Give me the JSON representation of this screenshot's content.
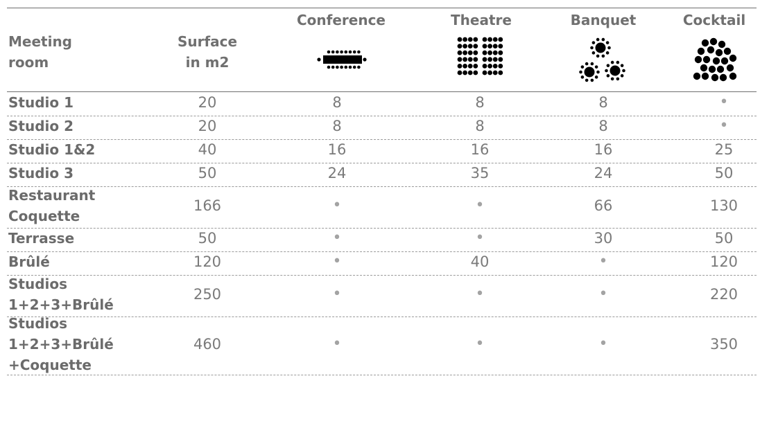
{
  "header": {
    "meeting_room": [
      "Meeting",
      "room"
    ],
    "surface": [
      "Surface",
      "in m2"
    ],
    "conference": "Conference",
    "theatre": "Theatre",
    "banquet": "Banquet",
    "cocktail": "Cocktail"
  },
  "rows": [
    {
      "name": [
        "Studio 1"
      ],
      "surface": "20",
      "conference": "8",
      "theatre": "8",
      "banquet": "8",
      "cocktail": "•"
    },
    {
      "name": [
        "Studio 2"
      ],
      "surface": "20",
      "conference": "8",
      "theatre": "8",
      "banquet": "8",
      "cocktail": "•"
    },
    {
      "name": [
        "Studio 1&2"
      ],
      "surface": "40",
      "conference": "16",
      "theatre": "16",
      "banquet": "16",
      "cocktail": "25"
    },
    {
      "name": [
        "Studio 3"
      ],
      "surface": "50",
      "conference": "24",
      "theatre": "35",
      "banquet": "24",
      "cocktail": "50"
    },
    {
      "name": [
        "Restaurant",
        "Coquette"
      ],
      "surface": "166",
      "conference": "•",
      "theatre": "•",
      "banquet": "66",
      "cocktail": "130"
    },
    {
      "name": [
        "Terrasse"
      ],
      "surface": "50",
      "conference": "•",
      "theatre": "•",
      "banquet": "30",
      "cocktail": "50"
    },
    {
      "name": [
        "Brûlé"
      ],
      "surface": "120",
      "conference": "•",
      "theatre": "40",
      "banquet": "•",
      "cocktail": "120"
    },
    {
      "name": [
        "Studios",
        "1+2+3+Brûlé"
      ],
      "surface": "250",
      "conference": "•",
      "theatre": "•",
      "banquet": "•",
      "cocktail": "220"
    },
    {
      "name": [
        "Studios",
        "1+2+3+Brûlé",
        "+Coquette"
      ],
      "surface": "460",
      "conference": "•",
      "theatre": "•",
      "banquet": "•",
      "cocktail": "350"
    }
  ],
  "icons": {
    "conference": "conference-table-icon",
    "theatre": "theatre-seating-icon",
    "banquet": "banquet-round-tables-icon",
    "cocktail": "cocktail-standing-icon"
  }
}
